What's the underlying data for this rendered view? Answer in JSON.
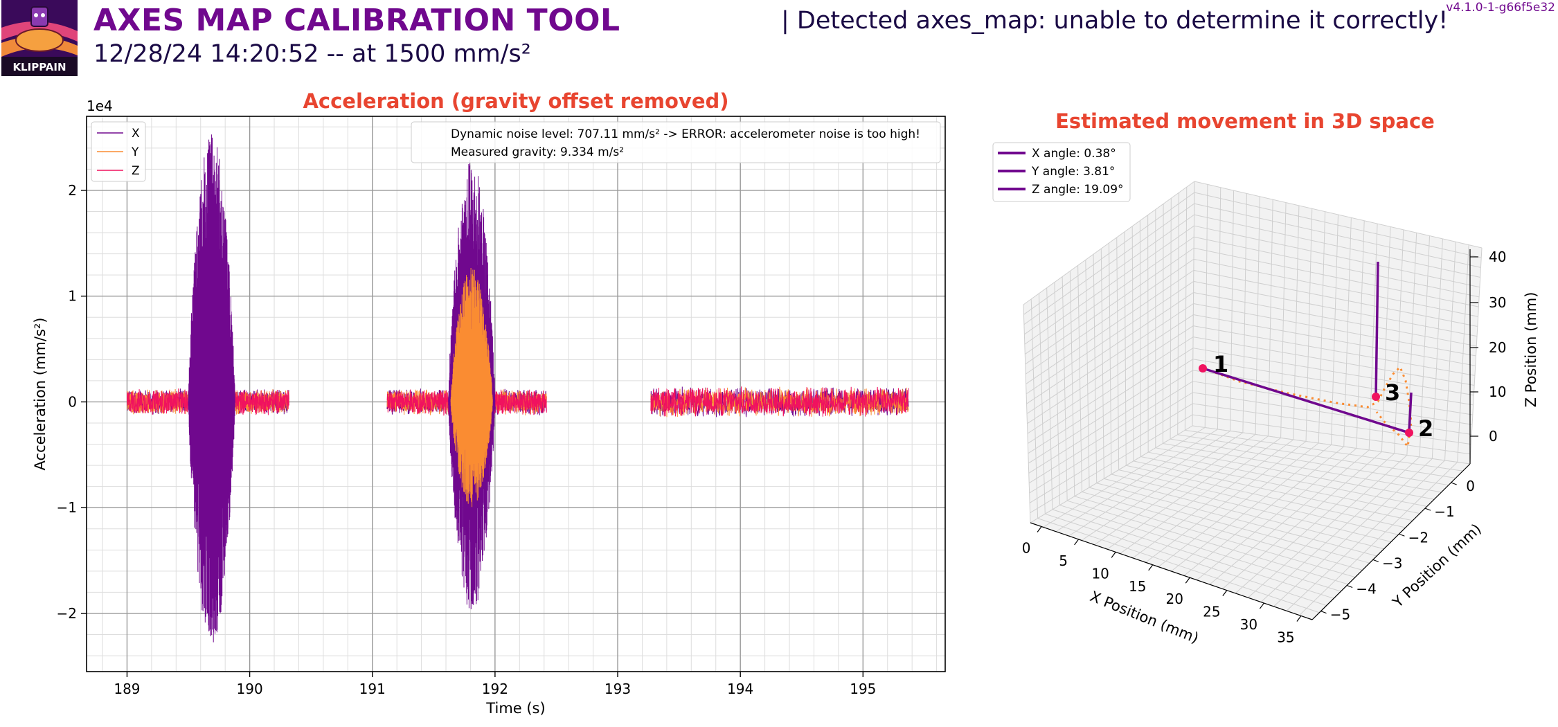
{
  "header": {
    "logo_text": "KLIPPAIN",
    "title": "AXES MAP CALIBRATION TOOL",
    "subtitle": "12/28/24 14:20:52 -- at 1500 mm/s²",
    "detected": "| Detected axes_map: unable to determine it correctly!",
    "version": "v4.1.0-1-g66f5e32"
  },
  "colors": {
    "brand_purple": "#70088e",
    "title_red": "#e84530",
    "x_series": "#70088e",
    "y_series": "#fa8c32",
    "z_series": "#f0125f",
    "dark_text": "#1a0a45"
  },
  "chart_data": [
    {
      "type": "line",
      "title": "Acceleration (gravity offset removed)",
      "xlabel": "Time (s)",
      "ylabel": "Acceleration (mm/s²)",
      "y_multiplier": "1e4",
      "xlim": [
        188.67,
        195.67
      ],
      "ylim": [
        -2.55,
        2.7
      ],
      "xticks": [
        "189",
        "190",
        "191",
        "192",
        "193",
        "194",
        "195"
      ],
      "yticks": [
        "−2",
        "−1",
        "0",
        "1",
        "2"
      ],
      "grid": "major+minor",
      "legend": [
        "X",
        "Y",
        "Z"
      ],
      "legend_position": "top-left",
      "annotations": [
        "Dynamic noise level: 707.11 mm/s² -> ERROR: accelerometer noise is too high!",
        "Measured gravity: 9.334 m/s²"
      ],
      "segments": [
        {
          "t_start": 189.0,
          "t_end": 190.32,
          "noise": 0.13,
          "burst": {
            "series": "X",
            "t_start": 189.5,
            "t_end": 189.88,
            "max": 2.55,
            "min": -2.32
          }
        },
        {
          "t_start": 191.12,
          "t_end": 192.42,
          "noise": 0.13,
          "burst": {
            "series": "Y",
            "t_start": 191.62,
            "t_end": 192.0,
            "max": 2.32,
            "min": -2.0
          }
        },
        {
          "t_start": 193.27,
          "t_end": 195.37,
          "noise": 0.15,
          "burst": null
        }
      ]
    },
    {
      "type": "line3d",
      "title": "Estimated movement in 3D space",
      "xlabel": "X Position (mm)",
      "ylabel": "Y Position (mm)",
      "zlabel": "Z Position (mm)",
      "xticks": [
        "0",
        "5",
        "10",
        "15",
        "20",
        "25",
        "30",
        "35"
      ],
      "yticks": [
        "0",
        "−1",
        "−2",
        "−3",
        "−4",
        "−5"
      ],
      "zticks": [
        "0",
        "10",
        "20",
        "30",
        "40"
      ],
      "legend": [
        "X angle: 0.38°",
        "Y angle: 3.81°",
        "Z angle: 19.09°"
      ],
      "legend_position": "top-left",
      "point_labels": [
        "1",
        "2",
        "3"
      ],
      "points": [
        {
          "label": "1",
          "x": 0.5,
          "y": 0,
          "z": 15
        },
        {
          "label": "2",
          "x": 35,
          "y": -5,
          "z": 0
        },
        {
          "label": "3",
          "x": 34,
          "y": -5,
          "z": 10
        }
      ]
    }
  ]
}
